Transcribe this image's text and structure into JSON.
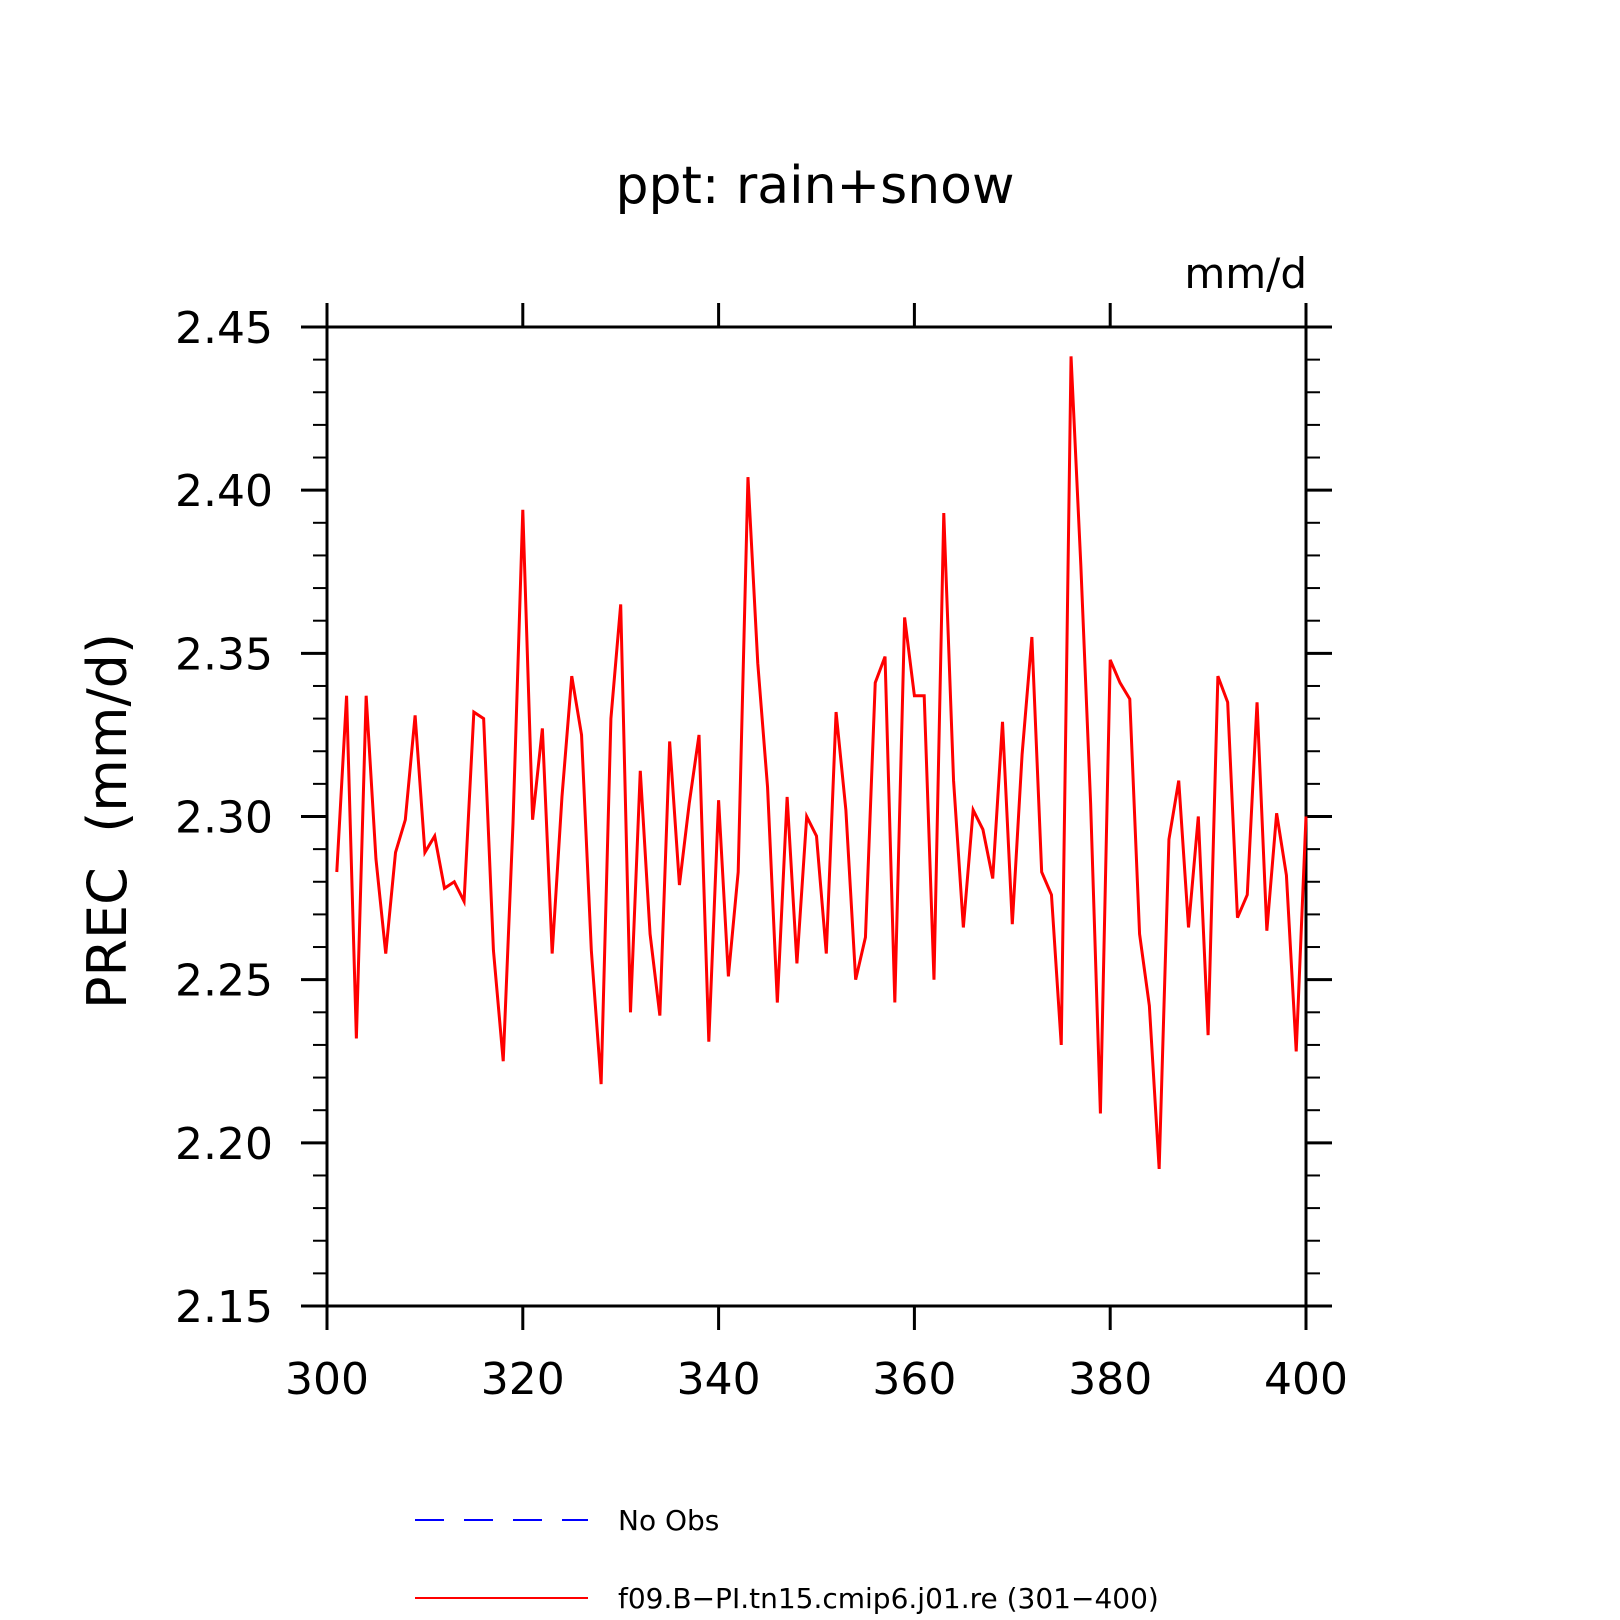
{
  "chart_data": {
    "type": "line",
    "title": "ppt: rain+snow",
    "units": "mm/d",
    "ylabel": "PREC  (mm/d)",
    "xlabel": "",
    "xlim": [
      300,
      400
    ],
    "ylim": [
      2.15,
      2.45
    ],
    "x_ticks": [
      "300",
      "320",
      "340",
      "360",
      "380",
      "400"
    ],
    "y_ticks": [
      "2.15",
      "2.20",
      "2.25",
      "2.30",
      "2.35",
      "2.40",
      "2.45"
    ],
    "x": [
      301,
      302,
      303,
      304,
      305,
      306,
      307,
      308,
      309,
      310,
      311,
      312,
      313,
      314,
      315,
      316,
      317,
      318,
      319,
      320,
      321,
      322,
      323,
      324,
      325,
      326,
      327,
      328,
      329,
      330,
      331,
      332,
      333,
      334,
      335,
      336,
      337,
      338,
      339,
      340,
      341,
      342,
      343,
      344,
      345,
      346,
      347,
      348,
      349,
      350,
      351,
      352,
      353,
      354,
      355,
      356,
      357,
      358,
      359,
      360,
      361,
      362,
      363,
      364,
      365,
      366,
      367,
      368,
      369,
      370,
      371,
      372,
      373,
      374,
      375,
      376,
      377,
      378,
      379,
      380,
      381,
      382,
      383,
      384,
      385,
      386,
      387,
      388,
      389,
      390,
      391,
      392,
      393,
      394,
      395,
      396,
      397,
      398,
      399,
      400
    ],
    "series": [
      {
        "name": "f09.B-PI.tn15.cmip6.j01.re (301-400)",
        "color": "#ff0000",
        "style": "solid",
        "values": [
          2.283,
          2.337,
          2.232,
          2.337,
          2.287,
          2.258,
          2.289,
          2.299,
          2.331,
          2.289,
          2.294,
          2.278,
          2.28,
          2.274,
          2.332,
          2.33,
          2.259,
          2.225,
          2.298,
          2.394,
          2.299,
          2.327,
          2.258,
          2.306,
          2.343,
          2.325,
          2.259,
          2.218,
          2.33,
          2.365,
          2.24,
          2.314,
          2.264,
          2.239,
          2.323,
          2.279,
          2.304,
          2.325,
          2.231,
          2.305,
          2.251,
          2.283,
          2.404,
          2.347,
          2.309,
          2.243,
          2.306,
          2.255,
          2.3,
          2.294,
          2.258,
          2.332,
          2.302,
          2.25,
          2.263,
          2.341,
          2.349,
          2.243,
          2.361,
          2.337,
          2.337,
          2.25,
          2.393,
          2.311,
          2.266,
          2.302,
          2.296,
          2.281,
          2.329,
          2.267,
          2.319,
          2.355,
          2.283,
          2.276,
          2.23,
          2.441,
          2.377,
          2.304,
          2.209,
          2.348,
          2.341,
          2.336,
          2.264,
          2.242,
          2.192,
          2.293,
          2.311,
          2.266,
          2.3,
          2.233,
          2.343,
          2.335,
          2.269,
          2.276,
          2.335,
          2.265,
          2.301,
          2.282,
          2.228,
          2.3
        ]
      }
    ],
    "legend": [
      {
        "label": "No Obs",
        "color": "#0000ff",
        "style": "dashed"
      },
      {
        "label": "f09.B−PI.tn15.cmip6.j01.re (301−400)",
        "color": "#ff0000",
        "style": "solid"
      }
    ],
    "legend_placement": "bottom-center",
    "grid": false
  }
}
